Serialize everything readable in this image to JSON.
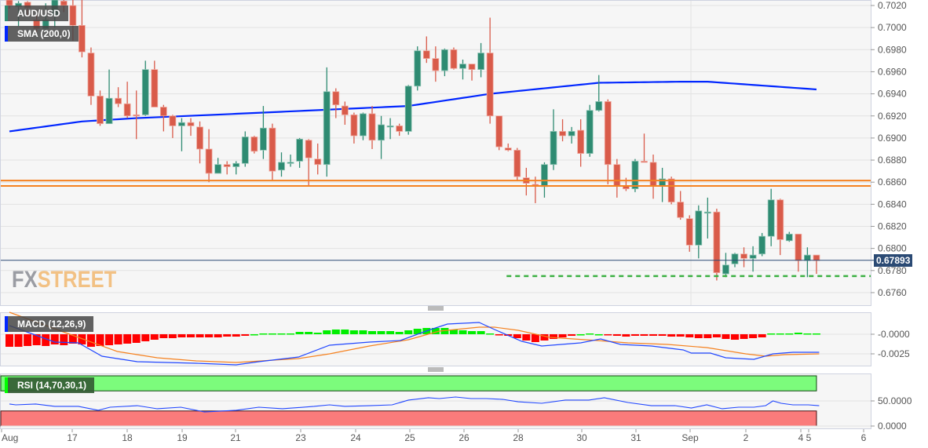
{
  "labels": {
    "symbol": "AUD/USD",
    "sma": "SMA (200,0)",
    "macd": "MACD (12,26,9)",
    "rsi": "RSI (14,70,30,1)"
  },
  "watermark": {
    "part1": "FX",
    "part2": "STREET"
  },
  "current_price": "0.67893",
  "colors": {
    "up": "#2e8b72",
    "down": "#d95b4a",
    "sma": "#0026ff",
    "resistance": "#f58220",
    "support": "#3cb043",
    "macd_line": "#2147ff",
    "signal_line": "#f58220",
    "hist_up": "#00ee00",
    "hist_down": "#ff0000",
    "rsi_line": "#2147ff",
    "rsi_overbought": "#7cfc7c",
    "rsi_oversold": "#fa7b7b"
  },
  "chart_data": [
    {
      "type": "candlestick",
      "title": "AUD/USD",
      "ylim": [
        0.675,
        0.7025
      ],
      "y_ticks": [
        "0.7020",
        "0.7000",
        "0.6980",
        "0.6960",
        "0.6940",
        "0.6920",
        "0.6900",
        "0.6880",
        "0.6860",
        "0.6840",
        "0.6820",
        "0.6800",
        "0.6780",
        "0.6760"
      ],
      "x_ticks": [
        "Aug",
        "17",
        "18",
        "19",
        "21",
        "23",
        "24",
        "25",
        "26",
        "28",
        "30",
        "31",
        "Sep",
        "2",
        "4",
        "5",
        "6"
      ],
      "ohlc": [
        [
          0.7025,
          0.7027,
          0.7017,
          0.702
        ],
        [
          0.7019,
          0.7024,
          0.7001,
          0.7022
        ],
        [
          0.7023,
          0.7024,
          0.701,
          0.7018
        ],
        [
          0.7007,
          0.7015,
          0.6996,
          0.6999
        ],
        [
          0.6999,
          0.7022,
          0.6996,
          0.7007
        ],
        [
          0.7011,
          0.7028,
          0.7,
          0.7025
        ],
        [
          0.7024,
          0.7026,
          0.7014,
          0.702
        ],
        [
          0.702,
          0.7025,
          0.6988,
          0.7002
        ],
        [
          0.7002,
          0.7025,
          0.6973,
          0.6978
        ],
        [
          0.6977,
          0.6982,
          0.693,
          0.6938
        ],
        [
          0.6938,
          0.6943,
          0.6911,
          0.6913
        ],
        [
          0.6913,
          0.6962,
          0.6913,
          0.6936
        ],
        [
          0.6936,
          0.6946,
          0.6928,
          0.6931
        ],
        [
          0.6931,
          0.6951,
          0.6918,
          0.692
        ],
        [
          0.6921,
          0.6943,
          0.6899,
          0.692
        ],
        [
          0.6921,
          0.697,
          0.692,
          0.6962
        ],
        [
          0.6962,
          0.697,
          0.6928,
          0.6928
        ],
        [
          0.6928,
          0.693,
          0.6906,
          0.692
        ],
        [
          0.692,
          0.6921,
          0.69,
          0.6911
        ],
        [
          0.6911,
          0.6918,
          0.6888,
          0.6914
        ],
        [
          0.6914,
          0.6918,
          0.6902,
          0.6911
        ],
        [
          0.691,
          0.6915,
          0.6877,
          0.689
        ],
        [
          0.689,
          0.6908,
          0.686,
          0.6868
        ],
        [
          0.6868,
          0.6882,
          0.6868,
          0.6876
        ],
        [
          0.6876,
          0.6879,
          0.6867,
          0.6874
        ],
        [
          0.6874,
          0.6879,
          0.6867,
          0.6877
        ],
        [
          0.6877,
          0.6906,
          0.6874,
          0.6901
        ],
        [
          0.6901,
          0.6902,
          0.6886,
          0.6888
        ],
        [
          0.6889,
          0.6929,
          0.6881,
          0.6909
        ],
        [
          0.6909,
          0.6913,
          0.6862,
          0.687
        ],
        [
          0.6871,
          0.6887,
          0.6865,
          0.6878
        ],
        [
          0.6878,
          0.6885,
          0.6874,
          0.6878
        ],
        [
          0.6879,
          0.69,
          0.6873,
          0.6899
        ],
        [
          0.6898,
          0.6899,
          0.6856,
          0.6882
        ],
        [
          0.6881,
          0.6895,
          0.6867,
          0.6876
        ],
        [
          0.6876,
          0.6964,
          0.6865,
          0.6942
        ],
        [
          0.6942,
          0.6945,
          0.6918,
          0.693
        ],
        [
          0.6929,
          0.6933,
          0.6912,
          0.6921
        ],
        [
          0.6921,
          0.6923,
          0.6895,
          0.6902
        ],
        [
          0.6902,
          0.6923,
          0.6898,
          0.6922
        ],
        [
          0.6922,
          0.6929,
          0.689,
          0.6898
        ],
        [
          0.6898,
          0.692,
          0.6881,
          0.6912
        ],
        [
          0.6911,
          0.6918,
          0.6899,
          0.6911
        ],
        [
          0.6911,
          0.6913,
          0.6902,
          0.6906
        ],
        [
          0.6906,
          0.6948,
          0.6903,
          0.6947
        ],
        [
          0.6947,
          0.6983,
          0.6943,
          0.6979
        ],
        [
          0.6979,
          0.6992,
          0.6968,
          0.6972
        ],
        [
          0.6972,
          0.6983,
          0.6951,
          0.6961
        ],
        [
          0.6961,
          0.6981,
          0.6956,
          0.698
        ],
        [
          0.698,
          0.6982,
          0.6962,
          0.6963
        ],
        [
          0.6963,
          0.6971,
          0.6953,
          0.6967
        ],
        [
          0.6967,
          0.6967,
          0.6952,
          0.6962
        ],
        [
          0.6962,
          0.6986,
          0.6955,
          0.6977
        ],
        [
          0.6977,
          0.7009,
          0.6913,
          0.692
        ],
        [
          0.692,
          0.692,
          0.6889,
          0.6892
        ],
        [
          0.6891,
          0.6895,
          0.6888,
          0.6889
        ],
        [
          0.6889,
          0.6891,
          0.6861,
          0.6865
        ],
        [
          0.6864,
          0.6873,
          0.6848,
          0.6859
        ],
        [
          0.6858,
          0.6865,
          0.6841,
          0.6857
        ],
        [
          0.6856,
          0.6878,
          0.6846,
          0.6876
        ],
        [
          0.6876,
          0.6926,
          0.6871,
          0.6906
        ],
        [
          0.6906,
          0.6917,
          0.6897,
          0.6902
        ],
        [
          0.6902,
          0.691,
          0.6895,
          0.6906
        ],
        [
          0.6907,
          0.6917,
          0.6874,
          0.6886
        ],
        [
          0.6886,
          0.693,
          0.6883,
          0.6925
        ],
        [
          0.6925,
          0.6957,
          0.6924,
          0.6933
        ],
        [
          0.6933,
          0.6935,
          0.6858,
          0.6876
        ],
        [
          0.6876,
          0.6881,
          0.6846,
          0.6857
        ],
        [
          0.6857,
          0.6864,
          0.6852,
          0.6854
        ],
        [
          0.6854,
          0.6881,
          0.6851,
          0.6879
        ],
        [
          0.6879,
          0.6904,
          0.6878,
          0.6878
        ],
        [
          0.6878,
          0.6885,
          0.6845,
          0.6857
        ],
        [
          0.6857,
          0.6873,
          0.6842,
          0.6863
        ],
        [
          0.6863,
          0.6865,
          0.684,
          0.6842
        ],
        [
          0.6842,
          0.6852,
          0.6826,
          0.6828
        ],
        [
          0.6827,
          0.683,
          0.6797,
          0.6803
        ],
        [
          0.6803,
          0.6839,
          0.6791,
          0.6834
        ],
        [
          0.6833,
          0.6846,
          0.6809,
          0.6833
        ],
        [
          0.6833,
          0.6836,
          0.6771,
          0.6778
        ],
        [
          0.6777,
          0.6796,
          0.6774,
          0.6785
        ],
        [
          0.6786,
          0.6796,
          0.6783,
          0.6795
        ],
        [
          0.6795,
          0.6801,
          0.6783,
          0.6791
        ],
        [
          0.6791,
          0.6802,
          0.6779,
          0.6794
        ],
        [
          0.6795,
          0.6814,
          0.6793,
          0.6811
        ],
        [
          0.6811,
          0.6854,
          0.6802,
          0.6844
        ],
        [
          0.6844,
          0.6845,
          0.6794,
          0.6808
        ],
        [
          0.6807,
          0.6815,
          0.6806,
          0.6813
        ],
        [
          0.6813,
          0.6813,
          0.6779,
          0.6789
        ],
        [
          0.6789,
          0.6801,
          0.6774,
          0.6794
        ],
        [
          0.6794,
          0.6794,
          0.6777,
          0.6789
        ]
      ],
      "sma_200": [
        [
          0,
          0.6906
        ],
        [
          8,
          0.6915
        ],
        [
          14,
          0.6918
        ],
        [
          28,
          0.6923
        ],
        [
          44,
          0.6929
        ],
        [
          53,
          0.694
        ],
        [
          65,
          0.695
        ],
        [
          74,
          0.6951
        ],
        [
          77,
          0.6951
        ],
        [
          89,
          0.6944
        ]
      ],
      "resistance_levels": [
        0.68615,
        0.68566
      ],
      "support_level": 0.6775,
      "support_start_bar": 55,
      "last_price": 0.67893
    },
    {
      "type": "macd",
      "title": "MACD (12,26,9)",
      "ylim": [
        -0.0042,
        0.0028
      ],
      "y_ticks": [
        "-0.0000",
        "-0.0025"
      ],
      "histogram": [
        -0.0016,
        -0.0016,
        -0.0015,
        -0.0014,
        -0.0015,
        -0.0013,
        -0.0014,
        -0.0012,
        -0.0013,
        -0.0016,
        -0.0015,
        -0.0014,
        -0.0013,
        -0.0012,
        -0.0011,
        -0.0009,
        -0.0007,
        -0.0005,
        -0.0005,
        -0.0004,
        -0.0004,
        -0.0004,
        -0.0004,
        -0.0004,
        -0.0003,
        -0.0003,
        -0.0002,
        0,
        0.0001,
        0.0001,
        0.0001,
        0.0001,
        0.0003,
        0.0003,
        0.0002,
        0.0005,
        0.0006,
        0.0006,
        0.0005,
        0.0005,
        0.0004,
        0.0004,
        0.0004,
        0.0003,
        0.0005,
        0.0007,
        0.0008,
        0.0008,
        0.0008,
        0.0006,
        0.0005,
        0.0004,
        0.0004,
        0.0001,
        -0.0001,
        -0.0002,
        -0.0005,
        -0.0008,
        -0.001,
        -0.0008,
        -0.0006,
        -0.0004,
        -0.0002,
        0,
        0.0001,
        0,
        -0.0001,
        -0.0002,
        -0.0003,
        -0.0002,
        -0.0002,
        -0.0002,
        -0.0002,
        -0.0003,
        -0.0003,
        -0.0004,
        -0.0005,
        -0.0005,
        -0.0004,
        -0.0006,
        -0.0007,
        -0.0006,
        -0.0005,
        -0.0004,
        0.0001,
        0.0001,
        0.0001,
        0.0002,
        0.0001,
        0.0001
      ],
      "macd_line": [
        [
          0,
          0.0011
        ],
        [
          5,
          -0.001
        ],
        [
          7.6,
          -0.0011
        ],
        [
          10.2,
          -0.0028
        ],
        [
          14.1,
          -0.0035
        ],
        [
          20.6,
          -0.0037
        ],
        [
          25,
          -0.0039
        ],
        [
          27.5,
          -0.0035
        ],
        [
          31.9,
          -0.0029
        ],
        [
          35.3,
          -0.0014
        ],
        [
          39.7,
          -0.001
        ],
        [
          43.1,
          -0.0008
        ],
        [
          46.2,
          0.0005
        ],
        [
          48.3,
          0.0013
        ],
        [
          51.8,
          0.0015
        ],
        [
          53.5,
          0.0006
        ],
        [
          56.5,
          -0.0009
        ],
        [
          58.7,
          -0.0015
        ],
        [
          63,
          -0.0011
        ],
        [
          65.2,
          -0.0006
        ],
        [
          67.4,
          -0.0013
        ],
        [
          70.8,
          -0.0015
        ],
        [
          74.3,
          -0.002
        ],
        [
          75.2,
          -0.0024
        ],
        [
          77.3,
          -0.0024
        ],
        [
          79,
          -0.003
        ],
        [
          82.1,
          -0.0032
        ],
        [
          84.2,
          -0.0025
        ],
        [
          86.4,
          -0.0023
        ],
        [
          89.3,
          -0.0023
        ]
      ],
      "signal_line": [
        [
          0,
          0.0028
        ],
        [
          7.6,
          -0.0004
        ],
        [
          11.9,
          -0.0022
        ],
        [
          16.3,
          -0.003
        ],
        [
          20.6,
          -0.0034
        ],
        [
          25,
          -0.0036
        ],
        [
          31.9,
          -0.0031
        ],
        [
          35.3,
          -0.0025
        ],
        [
          39.7,
          -0.0015
        ],
        [
          44,
          -0.0007
        ],
        [
          47.4,
          0.0004
        ],
        [
          51.8,
          0.0009
        ],
        [
          53.5,
          0.0009
        ],
        [
          56.1,
          0.0005
        ],
        [
          59.6,
          -0.0004
        ],
        [
          64.8,
          -0.0008
        ],
        [
          68.2,
          -0.0011
        ],
        [
          72.6,
          -0.0013
        ],
        [
          76.9,
          -0.0017
        ],
        [
          81.2,
          -0.0025
        ],
        [
          83.4,
          -0.0028
        ],
        [
          85.5,
          -0.0026
        ],
        [
          89.3,
          -0.0025
        ]
      ]
    },
    {
      "type": "rsi",
      "title": "RSI (14,70,30,1)",
      "ylim": [
        0,
        100
      ],
      "y_ticks": [
        "50.0000",
        "0.0000"
      ],
      "overbought": 70,
      "oversold": 30,
      "values": [
        [
          0,
          43.8
        ],
        [
          0.7,
          42.2
        ],
        [
          2.9,
          43.8
        ],
        [
          5,
          39.1
        ],
        [
          7.6,
          39.1
        ],
        [
          9.8,
          31.3
        ],
        [
          11.1,
          37.5
        ],
        [
          14.1,
          40.6
        ],
        [
          16.3,
          34.4
        ],
        [
          18.9,
          37.5
        ],
        [
          21.5,
          28.1
        ],
        [
          25,
          31.3
        ],
        [
          27.5,
          37.5
        ],
        [
          30.1,
          34.4
        ],
        [
          33.6,
          39.1
        ],
        [
          35.3,
          42.2
        ],
        [
          37,
          39.1
        ],
        [
          39.7,
          40.6
        ],
        [
          42.2,
          42.2
        ],
        [
          44,
          51.6
        ],
        [
          46.2,
          56.3
        ],
        [
          47.4,
          54.7
        ],
        [
          49.2,
          57.8
        ],
        [
          50.9,
          54.7
        ],
        [
          52.6,
          54.7
        ],
        [
          54.4,
          53.1
        ],
        [
          56.1,
          48.4
        ],
        [
          58.7,
          45.3
        ],
        [
          61.3,
          51.6
        ],
        [
          63.9,
          51.6
        ],
        [
          65.6,
          56.3
        ],
        [
          68.2,
          46.9
        ],
        [
          70.8,
          40.6
        ],
        [
          73.4,
          40.6
        ],
        [
          75.2,
          35.9
        ],
        [
          76.9,
          42.2
        ],
        [
          78.6,
          34.4
        ],
        [
          80.4,
          37.5
        ],
        [
          82.1,
          37.5
        ],
        [
          83.4,
          40.6
        ],
        [
          84.2,
          50
        ],
        [
          85.1,
          45.3
        ],
        [
          86.4,
          42.2
        ],
        [
          88.1,
          42.2
        ],
        [
          89.3,
          40.6
        ]
      ]
    }
  ]
}
